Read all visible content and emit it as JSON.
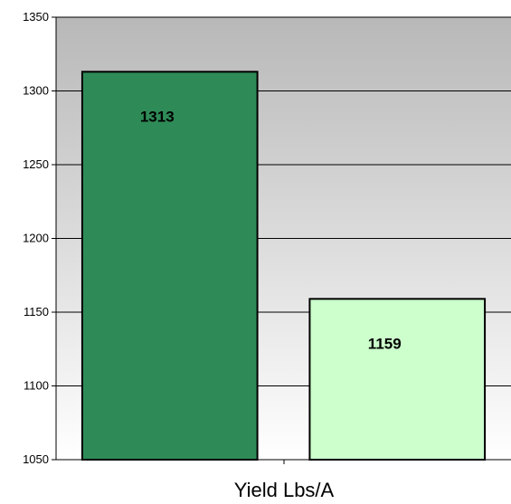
{
  "chart_data": {
    "type": "bar",
    "categories": [
      "",
      ""
    ],
    "values": [
      1313,
      1159
    ],
    "data_labels": [
      "1313",
      "1159"
    ],
    "xlabel": "Yield Lbs/A",
    "ylabel": "",
    "ylim": [
      1050,
      1350
    ],
    "yticks": [
      "1050",
      "1100",
      "1150",
      "1200",
      "1250",
      "1300",
      "1350"
    ],
    "grid": true,
    "legend": "none",
    "colors": {
      "bar_1": "#2e8b57",
      "bar_2": "#ccffcc",
      "bar_border": "#000000",
      "plot_bg_top": "#b8b8b8",
      "plot_bg_bottom": "#ffffff",
      "gridline": "#000000"
    }
  }
}
